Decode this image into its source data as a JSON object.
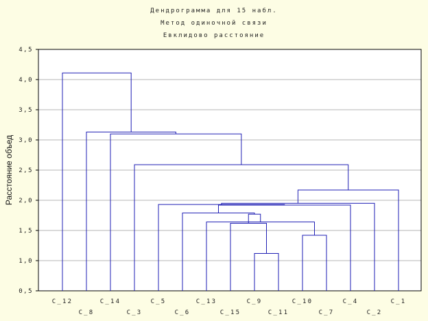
{
  "chart_data": {
    "type": "dendrogram",
    "title": [
      "Дендрограмма для 15 набл.",
      "Метод одиночной связи",
      "Евклидово расстояние"
    ],
    "ylabel": "Расстояние объед",
    "ylim": [
      0.5,
      4.5
    ],
    "yticks": [
      "0,5",
      "1,0",
      "1,5",
      "2,0",
      "2,5",
      "3,0",
      "3,5",
      "4,0",
      "4,5"
    ],
    "leaves": [
      "C_12",
      "C_8",
      "C_14",
      "C_3",
      "C_5",
      "C_6",
      "C_13",
      "C_15",
      "C_9",
      "C_11",
      "C_10",
      "C_7",
      "C_4",
      "C_2",
      "C_1"
    ],
    "grid": true,
    "merges": [
      {
        "a": "C_9",
        "b": "C_11",
        "height": 1.12
      },
      {
        "a": "C_10",
        "b": "C_7",
        "height": 1.42
      },
      {
        "a": "C_15",
        "b": "m0",
        "height": 1.62
      },
      {
        "a": "C_13",
        "b": "m1",
        "height": 1.64
      },
      {
        "a": "m2",
        "b": "m3",
        "height": 1.77
      },
      {
        "a": "C_6",
        "b": "m4",
        "height": 1.79
      },
      {
        "a": "m5",
        "b": "C_4",
        "height": 1.92
      },
      {
        "a": "C_5",
        "b": "m6",
        "height": 1.93
      },
      {
        "a": "m7",
        "b": "C_2",
        "height": 1.95
      },
      {
        "a": "m8",
        "b": "C_1",
        "height": 2.17
      },
      {
        "a": "C_3",
        "b": "m9",
        "height": 2.59
      },
      {
        "a": "C_14",
        "b": "m10",
        "height": 3.1
      },
      {
        "a": "C_8",
        "b": "m11",
        "height": 3.13
      },
      {
        "a": "C_12",
        "b": "m12",
        "height": 4.11
      }
    ]
  },
  "colors": {
    "line": "#1e1eb4",
    "grid": "#b4b4b4",
    "background": "#fdfde4",
    "plot": "#ffffff"
  }
}
